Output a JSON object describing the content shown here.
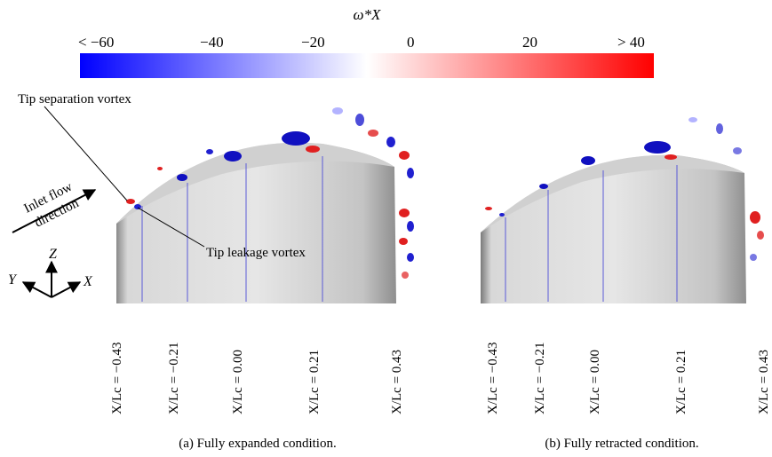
{
  "colorbar": {
    "title": "ω*X",
    "ticks": [
      "< −60",
      "−40",
      "−20",
      "0",
      "20",
      "> 40"
    ],
    "colors": {
      "negative": "#0000ff",
      "zero": "#ffffff",
      "positive": "#ff0000"
    }
  },
  "annotations": {
    "tip_separation": "Tip separation vortex",
    "tip_leakage": "Tip leakage vortex",
    "inlet_flow": [
      "Inlet flow",
      "direction"
    ]
  },
  "axes": {
    "z": "Z",
    "y": "Y",
    "x": "X"
  },
  "panels": [
    {
      "caption": "(a) Fully expanded condition.",
      "stations": [
        "X/Lc = −0.43",
        "X/Lc = −0.21",
        "X/Lc = 0.00",
        "X/Lc = 0.21",
        "X/Lc = 0.43"
      ]
    },
    {
      "caption": "(b) Fully retracted condition.",
      "stations": [
        "X/Lc = −0.43",
        "X/Lc = −0.21",
        "X/Lc = 0.00",
        "X/Lc = 0.21",
        "X/Lc = 0.43"
      ]
    }
  ]
}
